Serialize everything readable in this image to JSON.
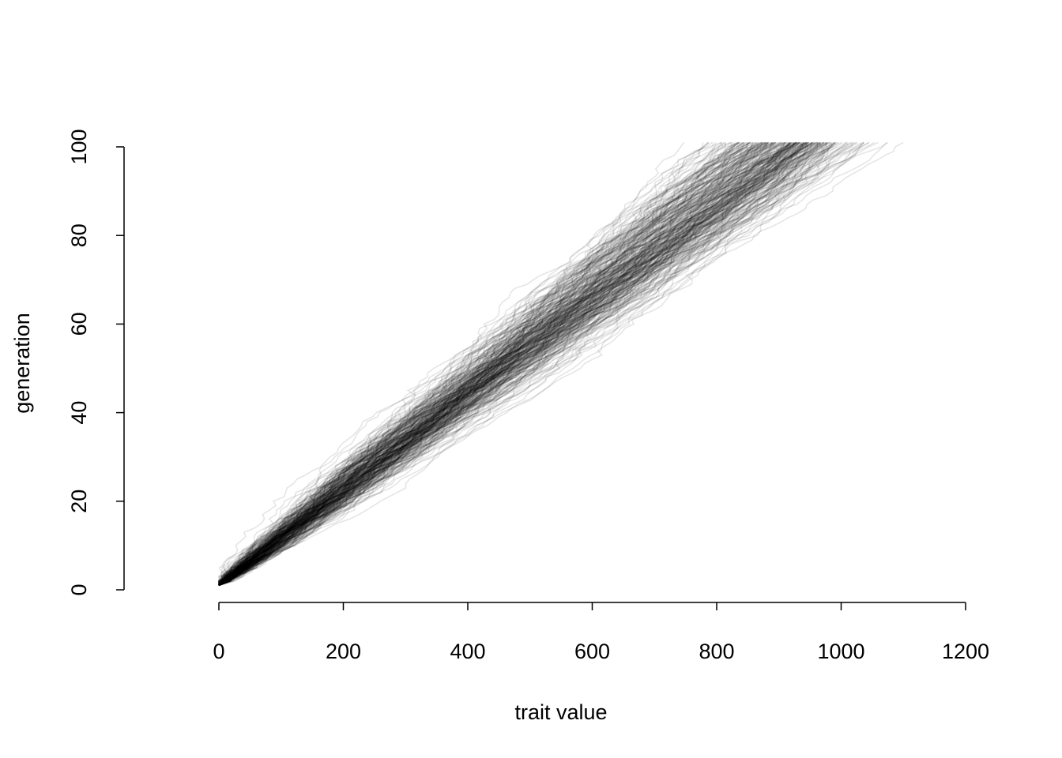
{
  "chart_data": {
    "type": "line",
    "title": "",
    "xlabel": "trait value",
    "ylabel": "generation",
    "xlim": [
      0,
      1200
    ],
    "ylim": [
      0,
      100
    ],
    "x_ticks": [
      "0",
      "200",
      "400",
      "600",
      "800",
      "1000",
      "1200"
    ],
    "y_ticks": [
      "0",
      "20",
      "40",
      "60",
      "80",
      "100"
    ],
    "grid": false,
    "legend": "none",
    "line_color": "#000000",
    "line_opacity": 0.1,
    "series_description": {
      "count_approx": 300,
      "generation_range": [
        1,
        101
      ],
      "start_trait_value": 0,
      "mean_trait_at_generation_100": 920,
      "trait_range_at_generation_100": [
        760,
        1100
      ],
      "mean_step_per_generation": 9.2,
      "step_sd_approx": 6
    }
  }
}
